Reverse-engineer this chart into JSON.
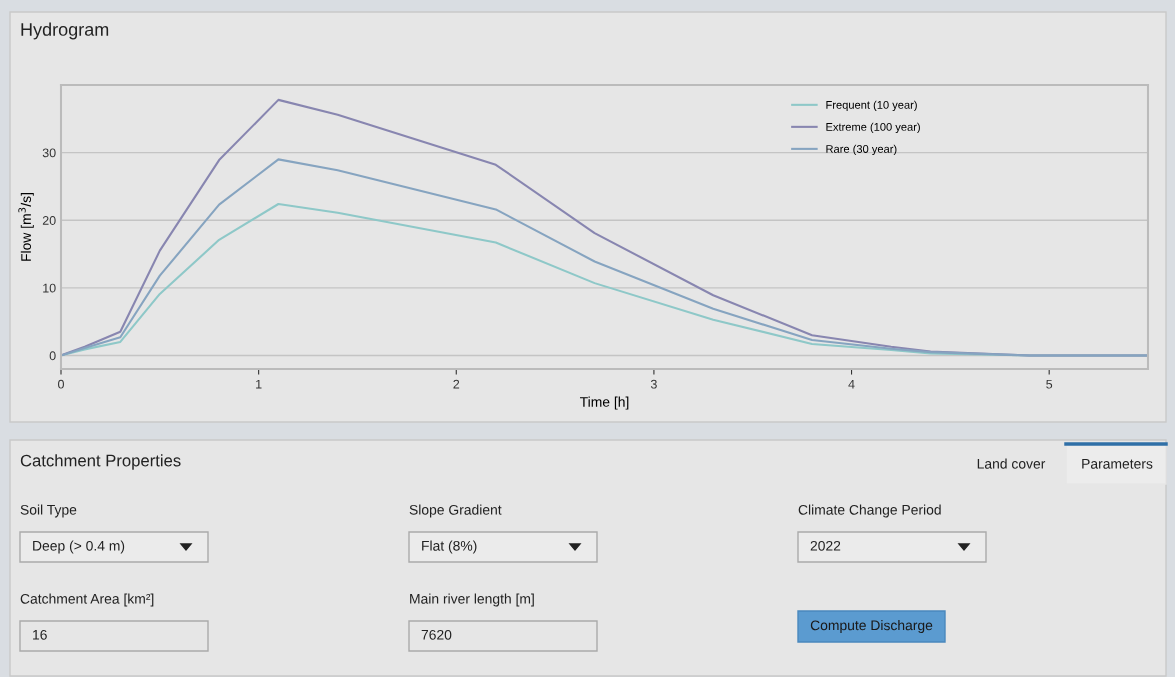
{
  "chart_data": [
    {
      "type": "line",
      "title": "Hydrogram",
      "xlabel": "Time [h]",
      "ylabel": "Flow [m$^{3}$/s]",
      "x": [
        0,
        0.12,
        0.3,
        0.5,
        0.8,
        1.1,
        1.4,
        2.2,
        2.7,
        3.3,
        3.8,
        4.2,
        4.4,
        4.9,
        5.5
      ],
      "series": [
        {
          "name": "Frequent (10 year)",
          "color": "#8ec8c8",
          "values": [
            0,
            0.9,
            2.0,
            9.1,
            17.1,
            22.4,
            21.1,
            16.7,
            10.7,
            5.3,
            1.7,
            0.8,
            0.3,
            0,
            0
          ]
        },
        {
          "name": "Extreme (100 year)",
          "color": "#8886b0",
          "values": [
            0,
            1.3,
            3.5,
            15.5,
            28.9,
            37.8,
            35.6,
            28.2,
            18.1,
            8.9,
            3.0,
            1.3,
            0.6,
            0,
            0
          ]
        },
        {
          "name": "Rare (30 year)",
          "color": "#86a4c0",
          "values": [
            0,
            1.1,
            2.7,
            11.8,
            22.3,
            29.0,
            27.4,
            21.6,
            13.9,
            6.9,
            2.3,
            1.0,
            0.5,
            0,
            0
          ]
        }
      ],
      "xlim": [
        0,
        5.5
      ],
      "xticks": [
        0,
        1,
        2,
        3,
        4,
        5
      ],
      "ylim": [
        -2,
        40
      ],
      "yticks": [
        0,
        10,
        20,
        30
      ],
      "grid": "y",
      "legend": "top right",
      "marker": "none",
      "line_style": "solid"
    },
    {
      "type": "other",
      "title": "Catchment Properties",
      "annotations": [
        "Land cover",
        "Parameters",
        "Soil Type",
        "Deep (> 0.4 m)",
        "Slope Gradient",
        "Flat (8%)",
        "Climate Change Period",
        "2022",
        "Catchment Area [km²]",
        "16",
        "Main river length [m]",
        "7620",
        "Compute Discharge"
      ]
    }
  ]
}
